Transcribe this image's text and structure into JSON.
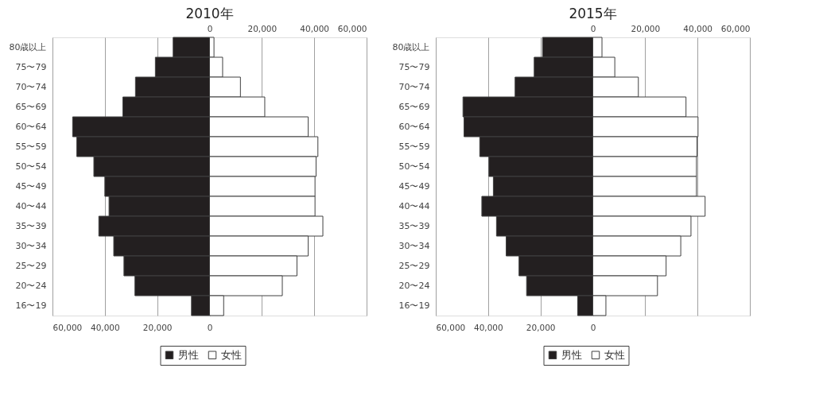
{
  "chart_data": [
    {
      "type": "bar",
      "orientation": "horizontal",
      "stacked": true,
      "title": "2010年",
      "categories": [
        "80歳以上",
        "75〜79",
        "70〜74",
        "65〜69",
        "60〜64",
        "55〜59",
        "50〜54",
        "45〜49",
        "40〜44",
        "35〜39",
        "30〜34",
        "25〜29",
        "20〜24",
        "16〜19"
      ],
      "series": [
        {
          "name": "男性",
          "color": "#231f20",
          "values": [
            -13900,
            -20700,
            -28300,
            -33100,
            -52300,
            -50700,
            -44200,
            -40000,
            -38400,
            -42300,
            -36600,
            -32700,
            -28500,
            -6900
          ]
        },
        {
          "name": "女性",
          "color": "#ffffff",
          "values": [
            1700,
            5000,
            11800,
            21100,
            37700,
            41400,
            40700,
            40300,
            40300,
            43300,
            37700,
            33400,
            27800,
            5400
          ]
        }
      ],
      "xlim": [
        -60000,
        60000
      ],
      "xticks": [
        {
          "value": -60000,
          "label": "60,000"
        },
        {
          "value": -40000,
          "label": "40,000"
        },
        {
          "value": -20000,
          "label": "20,000"
        },
        0
      ],
      "x2lim": [
        -60000,
        60000
      ],
      "x2ticks": [
        0,
        {
          "value": 20000,
          "label": "20,000"
        },
        {
          "value": 40000,
          "label": "40,000"
        },
        {
          "value": 60000,
          "label": "60,000"
        }
      ],
      "grid": "x",
      "legend": "bottom"
    },
    {
      "type": "bar",
      "orientation": "horizontal",
      "stacked": true,
      "title": "2015年",
      "categories": [
        "80歳以上",
        "75〜79",
        "70〜74",
        "65〜69",
        "60〜64",
        "55〜59",
        "50〜54",
        "45〜49",
        "40〜44",
        "35〜39",
        "30〜34",
        "25〜29",
        "20〜24",
        "16〜19"
      ],
      "series": [
        {
          "name": "男性",
          "color": "#231f20",
          "values": [
            -19200,
            -22400,
            -29700,
            -49600,
            -49200,
            -43200,
            -39700,
            -38000,
            -42400,
            -36800,
            -33100,
            -28200,
            -25300,
            -5800
          ]
        },
        {
          "name": "女性",
          "color": "#ffffff",
          "values": [
            3500,
            8400,
            17400,
            35600,
            40200,
            39800,
            39600,
            39600,
            42900,
            37500,
            33600,
            28000,
            24700,
            5000
          ]
        }
      ],
      "xlim": [
        -60000,
        60000
      ],
      "xticks": [
        {
          "value": -60000,
          "label": "60,000"
        },
        {
          "value": -40000,
          "label": "40,000"
        },
        {
          "value": -20000,
          "label": "20,000"
        },
        0
      ],
      "x2lim": [
        -60000,
        60000
      ],
      "x2ticks": [
        0,
        {
          "value": 20000,
          "label": "20,000"
        },
        {
          "value": 40000,
          "label": "40,000"
        },
        {
          "value": 60000,
          "label": "60,000"
        }
      ],
      "grid": "x",
      "legend": "bottom"
    }
  ]
}
